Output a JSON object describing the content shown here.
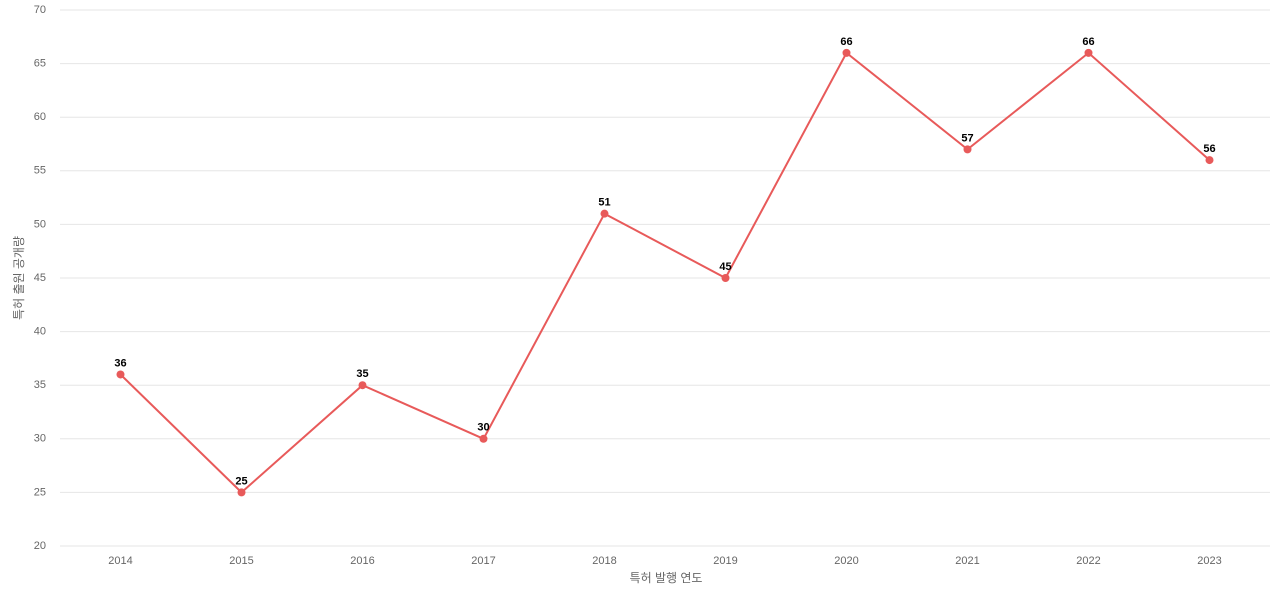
{
  "chart_data": {
    "type": "line",
    "x_label": "특허 발행 연도",
    "y_label": "특허 출원 공개량",
    "categories": [
      "2014",
      "2015",
      "2016",
      "2017",
      "2018",
      "2019",
      "2020",
      "2021",
      "2022",
      "2023"
    ],
    "values": [
      36,
      25,
      35,
      30,
      51,
      45,
      66,
      57,
      66,
      56
    ],
    "color": "#e85a5a",
    "ylim": [
      20,
      70
    ],
    "yticks": [
      20,
      25,
      30,
      35,
      40,
      45,
      50,
      55,
      60,
      65,
      70
    ],
    "grid": true,
    "data_labels": true
  }
}
